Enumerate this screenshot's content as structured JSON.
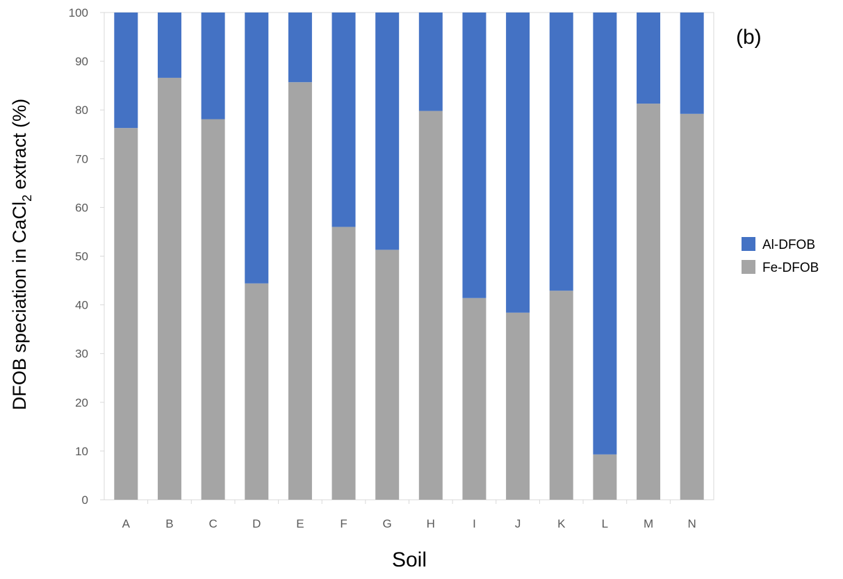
{
  "chart_data": {
    "type": "bar",
    "stacked": true,
    "panel_label": "(b)",
    "title": "",
    "xlabel": "Soil",
    "ylabel": {
      "before": "DFOB speciation in CaCl",
      "subscript": "2",
      "after": " extract (%)"
    },
    "ylim": [
      0,
      100
    ],
    "yticks": [
      0,
      10,
      20,
      30,
      40,
      50,
      60,
      70,
      80,
      90,
      100
    ],
    "grid": false,
    "legend_position": "right",
    "categories": [
      "A",
      "B",
      "C",
      "D",
      "E",
      "F",
      "G",
      "H",
      "I",
      "J",
      "K",
      "L",
      "M",
      "N"
    ],
    "series": [
      {
        "name": "Fe-DFOB",
        "color": "#a5a5a5",
        "values": [
          76.3,
          86.6,
          78.1,
          44.4,
          85.7,
          56.0,
          51.3,
          79.8,
          41.4,
          38.4,
          42.9,
          9.3,
          81.3,
          79.2
        ]
      },
      {
        "name": "Al-DFOB",
        "color": "#4472c4",
        "values": [
          23.7,
          13.4,
          21.9,
          55.6,
          14.3,
          44.0,
          48.7,
          20.2,
          58.6,
          61.6,
          57.1,
          90.7,
          18.7,
          20.8
        ]
      }
    ],
    "legend_order": [
      "Al-DFOB",
      "Fe-DFOB"
    ]
  }
}
